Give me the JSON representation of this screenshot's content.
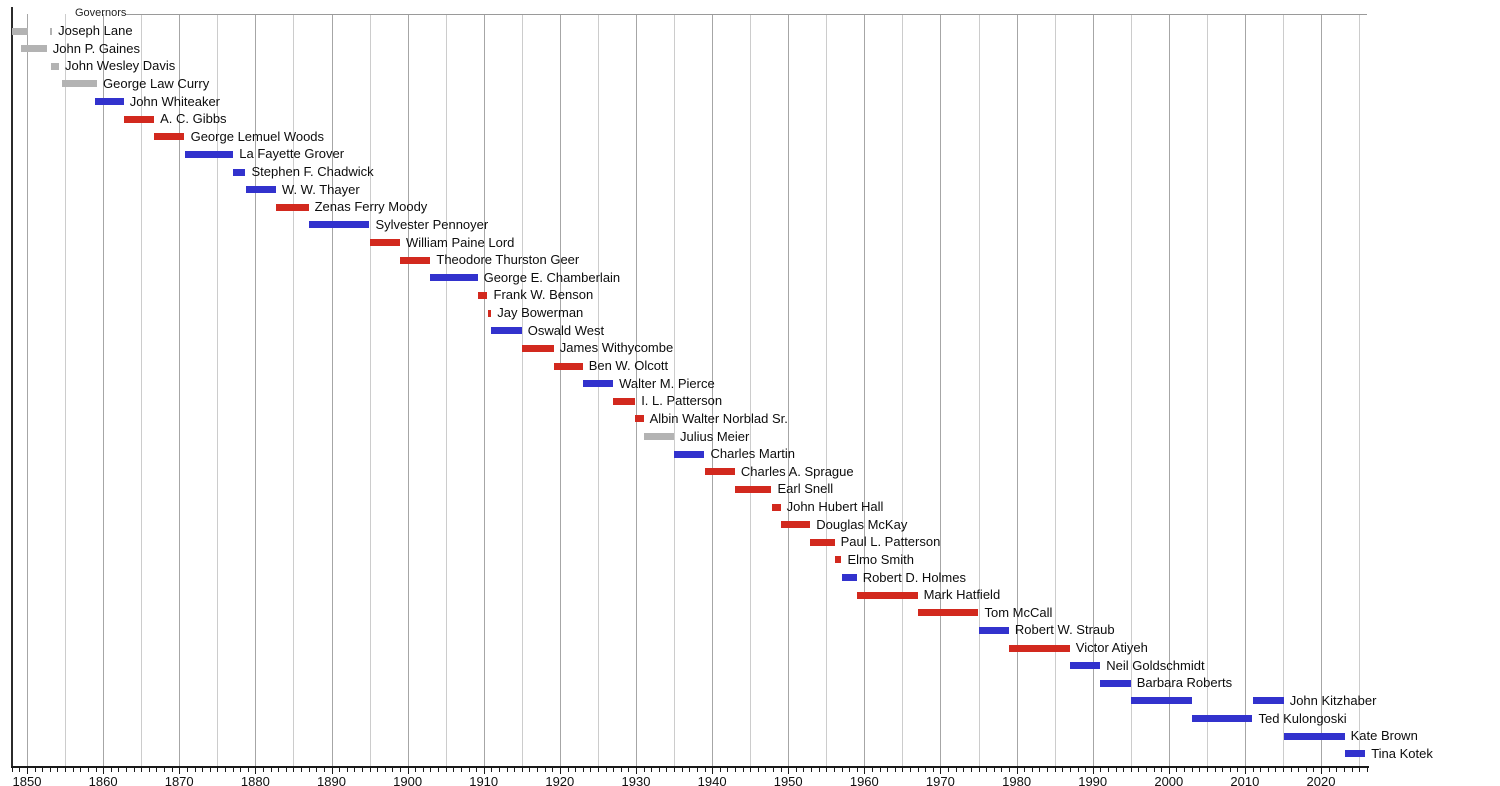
{
  "chart_data": {
    "type": "timeline",
    "title": "Governors",
    "x_axis": {
      "start": 1848,
      "end": 2026,
      "tick_step": 1,
      "grid_step": 5,
      "major_grid_step": 10,
      "grid_start": 1850,
      "grid_end": 2025,
      "labeled_ticks": [
        1850,
        1860,
        1870,
        1880,
        1890,
        1900,
        1910,
        1920,
        1930,
        1940,
        1950,
        1960,
        1970,
        1980,
        1990,
        2000,
        2010,
        2020
      ]
    },
    "party_colors": {
      "democratic": "#3232cd",
      "republican": "#d2291e",
      "other": "#b3b3b3"
    },
    "rows": [
      {
        "name": "Joseph Lane",
        "party": "other",
        "terms": [
          [
            1848.0,
            1850.2
          ],
          [
            1853.0,
            1853.3
          ]
        ]
      },
      {
        "name": "John P. Gaines",
        "party": "other",
        "terms": [
          [
            1849.2,
            1852.6
          ]
        ]
      },
      {
        "name": "John Wesley Davis",
        "party": "other",
        "terms": [
          [
            1853.2,
            1854.2
          ]
        ]
      },
      {
        "name": "George Law Curry",
        "party": "other",
        "terms": [
          [
            1854.6,
            1859.2
          ]
        ]
      },
      {
        "name": "John Whiteaker",
        "party": "democratic",
        "terms": [
          [
            1858.9,
            1862.7
          ]
        ]
      },
      {
        "name": "A. C. Gibbs",
        "party": "republican",
        "terms": [
          [
            1862.7,
            1866.7
          ]
        ]
      },
      {
        "name": "George Lemuel Woods",
        "party": "republican",
        "terms": [
          [
            1866.7,
            1870.7
          ]
        ]
      },
      {
        "name": "La Fayette Grover",
        "party": "democratic",
        "terms": [
          [
            1870.7,
            1877.1
          ]
        ]
      },
      {
        "name": "Stephen F. Chadwick",
        "party": "democratic",
        "terms": [
          [
            1877.1,
            1878.7
          ]
        ]
      },
      {
        "name": "W. W. Thayer",
        "party": "democratic",
        "terms": [
          [
            1878.7,
            1882.7
          ]
        ]
      },
      {
        "name": "Zenas Ferry Moody",
        "party": "republican",
        "terms": [
          [
            1882.7,
            1887.0
          ]
        ]
      },
      {
        "name": "Sylvester Pennoyer",
        "party": "democratic",
        "terms": [
          [
            1887.0,
            1895.0
          ]
        ]
      },
      {
        "name": "William Paine Lord",
        "party": "republican",
        "terms": [
          [
            1895.0,
            1899.0
          ]
        ]
      },
      {
        "name": "Theodore Thurston Geer",
        "party": "republican",
        "terms": [
          [
            1899.0,
            1903.0
          ]
        ]
      },
      {
        "name": "George E. Chamberlain",
        "party": "democratic",
        "terms": [
          [
            1903.0,
            1909.2
          ]
        ]
      },
      {
        "name": "Frank W. Benson",
        "party": "republican",
        "terms": [
          [
            1909.2,
            1910.5
          ]
        ]
      },
      {
        "name": "Jay Bowerman",
        "party": "republican",
        "terms": [
          [
            1910.5,
            1911.0
          ]
        ]
      },
      {
        "name": "Oswald West",
        "party": "democratic",
        "terms": [
          [
            1911.0,
            1915.0
          ]
        ]
      },
      {
        "name": "James Withycombe",
        "party": "republican",
        "terms": [
          [
            1915.0,
            1919.2
          ]
        ]
      },
      {
        "name": "Ben W. Olcott",
        "party": "republican",
        "terms": [
          [
            1919.2,
            1923.0
          ]
        ]
      },
      {
        "name": "Walter M. Pierce",
        "party": "democratic",
        "terms": [
          [
            1923.0,
            1927.0
          ]
        ]
      },
      {
        "name": "I. L. Patterson",
        "party": "republican",
        "terms": [
          [
            1927.0,
            1929.9
          ]
        ]
      },
      {
        "name": "Albin Walter Norblad Sr.",
        "party": "republican",
        "terms": [
          [
            1929.9,
            1931.0
          ]
        ]
      },
      {
        "name": "Julius Meier",
        "party": "other",
        "terms": [
          [
            1931.0,
            1935.0
          ]
        ]
      },
      {
        "name": "Charles Martin",
        "party": "democratic",
        "terms": [
          [
            1935.0,
            1939.0
          ]
        ]
      },
      {
        "name": "Charles A. Sprague",
        "party": "republican",
        "terms": [
          [
            1939.0,
            1943.0
          ]
        ]
      },
      {
        "name": "Earl Snell",
        "party": "republican",
        "terms": [
          [
            1943.0,
            1947.8
          ]
        ]
      },
      {
        "name": "John Hubert Hall",
        "party": "republican",
        "terms": [
          [
            1947.8,
            1949.0
          ]
        ]
      },
      {
        "name": "Douglas McKay",
        "party": "republican",
        "terms": [
          [
            1949.0,
            1952.9
          ]
        ]
      },
      {
        "name": "Paul L. Patterson",
        "party": "republican",
        "terms": [
          [
            1952.9,
            1956.1
          ]
        ]
      },
      {
        "name": "Elmo Smith",
        "party": "republican",
        "terms": [
          [
            1956.1,
            1957.0
          ]
        ]
      },
      {
        "name": "Robert D. Holmes",
        "party": "democratic",
        "terms": [
          [
            1957.0,
            1959.0
          ]
        ]
      },
      {
        "name": "Mark Hatfield",
        "party": "republican",
        "terms": [
          [
            1959.0,
            1967.0
          ]
        ]
      },
      {
        "name": "Tom McCall",
        "party": "republican",
        "terms": [
          [
            1967.0,
            1975.0
          ]
        ]
      },
      {
        "name": "Robert W. Straub",
        "party": "democratic",
        "terms": [
          [
            1975.0,
            1979.0
          ]
        ]
      },
      {
        "name": "Victor Atiyeh",
        "party": "republican",
        "terms": [
          [
            1979.0,
            1987.0
          ]
        ]
      },
      {
        "name": "Neil Goldschmidt",
        "party": "democratic",
        "terms": [
          [
            1987.0,
            1991.0
          ]
        ]
      },
      {
        "name": "Barbara Roberts",
        "party": "democratic",
        "terms": [
          [
            1991.0,
            1995.0
          ]
        ]
      },
      {
        "name": "John Kitzhaber",
        "party": "democratic",
        "terms": [
          [
            1995.0,
            2003.0
          ],
          [
            2011.0,
            2015.1
          ]
        ]
      },
      {
        "name": "Ted Kulongoski",
        "party": "democratic",
        "terms": [
          [
            2003.0,
            2011.0
          ]
        ]
      },
      {
        "name": "Kate Brown",
        "party": "democratic",
        "terms": [
          [
            2015.1,
            2023.1
          ]
        ]
      },
      {
        "name": "Tina Kotek",
        "party": "democratic",
        "terms": [
          [
            2023.1,
            2025.8
          ]
        ]
      }
    ]
  }
}
